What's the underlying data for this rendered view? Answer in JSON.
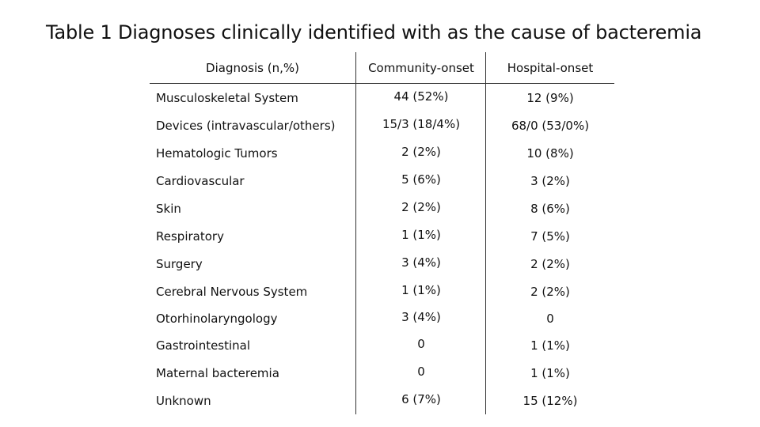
{
  "title": "Table 1  Diagnoses clinically identified with as the cause of bacteremia",
  "table": {
    "headers": {
      "diagnosis": "Diagnosis (n,%)",
      "community": "Community-onset",
      "hospital": "Hospital-onset"
    },
    "rows": [
      {
        "diagnosis": "Musculoskeletal System",
        "community": "44 (52%)",
        "hospital": "12 (9%)"
      },
      {
        "diagnosis": "Devices (intravascular/others)",
        "community": "15/3 (18/4%)",
        "hospital": "68/0 (53/0%)"
      },
      {
        "diagnosis": "Hematologic Tumors",
        "community": "2 (2%)",
        "hospital": "10 (8%)"
      },
      {
        "diagnosis": "Cardiovascular",
        "community": "5 (6%)",
        "hospital": "3 (2%)"
      },
      {
        "diagnosis": "Skin",
        "community": "2 (2%)",
        "hospital": "8 (6%)"
      },
      {
        "diagnosis": "Respiratory",
        "community": "1 (1%)",
        "hospital": "7 (5%)"
      },
      {
        "diagnosis": "Surgery",
        "community": "3 (4%)",
        "hospital": "2 (2%)"
      },
      {
        "diagnosis": "Cerebral Nervous System",
        "community": "1 (1%)",
        "hospital": "2 (2%)"
      },
      {
        "diagnosis": "Otorhinolaryngology",
        "community": "3 (4%)",
        "hospital": "0"
      },
      {
        "diagnosis": "Gastrointestinal",
        "community": "0",
        "hospital": "1 (1%)"
      },
      {
        "diagnosis": "Maternal bacteremia",
        "community": "0",
        "hospital": "1 (1%)"
      },
      {
        "diagnosis": "Unknown",
        "community": "6 (7%)",
        "hospital": "15 (12%)"
      }
    ]
  }
}
